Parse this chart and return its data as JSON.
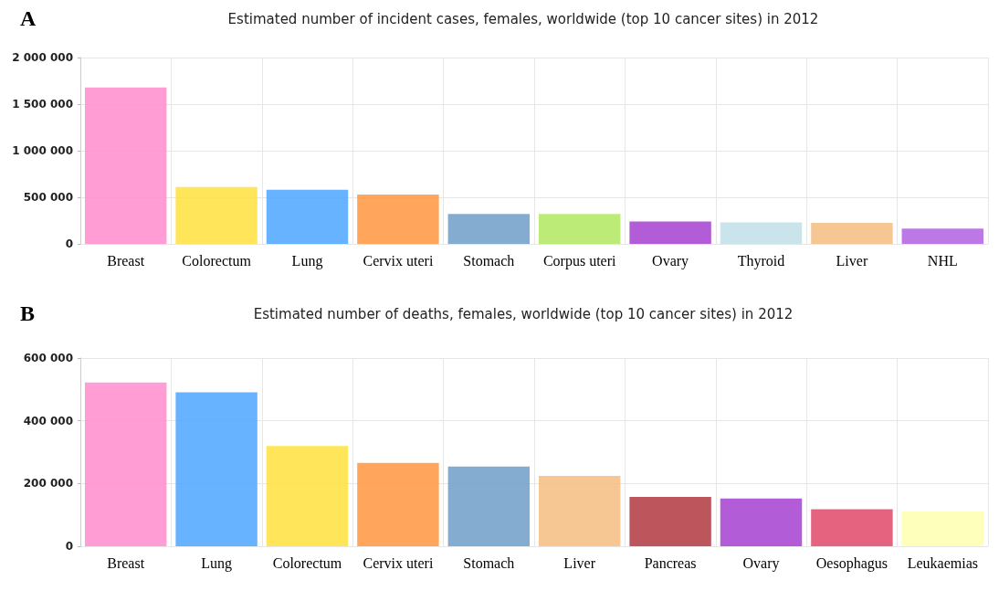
{
  "chart_data": [
    {
      "type": "bar",
      "title": "Estimated number of incident cases, females, worldwide (top 10 cancer sites) in 2012",
      "annotations": [
        "A"
      ],
      "categories": [
        "Breast",
        "Colorectum",
        "Lung",
        "Cervix uteri",
        "Stomach",
        "Corpus uteri",
        "Ovary",
        "Thyroid",
        "Liver",
        "NHL"
      ],
      "values": [
        1680000,
        610000,
        580000,
        530000,
        320000,
        320000,
        240000,
        230000,
        225000,
        165000
      ],
      "colors": [
        "#ff8ccc",
        "#ffe03d",
        "#4da6ff",
        "#ff9640",
        "#6e9ec8",
        "#b0e860",
        "#a640d0",
        "#bfe0e8",
        "#f5bc80",
        "#b060e0"
      ],
      "ylim": [
        0,
        2000000
      ],
      "yticks": [
        0,
        {
          "value": 500000,
          "label": "500 000"
        },
        {
          "value": 1000000,
          "label": "1 000 000"
        },
        {
          "value": 1500000,
          "label": "1 500 000"
        },
        {
          "value": 2000000,
          "label": "2 000 000"
        }
      ],
      "grid": true
    },
    {
      "type": "bar",
      "title": "Estimated number of deaths, females, worldwide (top 10 cancer sites) in 2012",
      "annotations": [
        "B"
      ],
      "categories": [
        "Breast",
        "Lung",
        "Colorectum",
        "Cervix uteri",
        "Stomach",
        "Liver",
        "Pancreas",
        "Ovary",
        "Oesophagus",
        "Leukaemias"
      ],
      "values": [
        522000,
        491000,
        320000,
        266000,
        254000,
        224000,
        157000,
        152000,
        118000,
        111000
      ],
      "colors": [
        "#ff8ccc",
        "#4da6ff",
        "#ffe03d",
        "#ff9640",
        "#6e9ec8",
        "#f5bc80",
        "#b03840",
        "#a640d0",
        "#e04868",
        "#ffffb0"
      ],
      "ylim": [
        0,
        600000
      ],
      "yticks": [
        0,
        {
          "value": 200000,
          "label": "200 000"
        },
        {
          "value": 400000,
          "label": "400 000"
        },
        {
          "value": 600000,
          "label": "600 000"
        }
      ],
      "grid": true
    }
  ]
}
